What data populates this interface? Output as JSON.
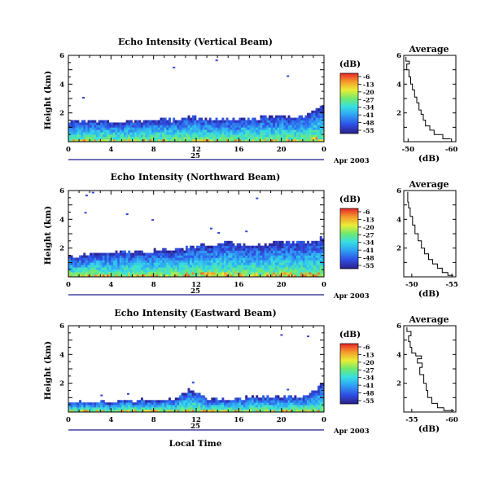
{
  "figure": {
    "x_axis_label": "Local Time",
    "date_label": "Apr 2003",
    "day_label": "25",
    "colorbar_unit": "(dB)",
    "average_title": "Average",
    "average_xlabel": "(dB)"
  },
  "chart_data": [
    {
      "type": "heatmap",
      "title": "Echo Intensity (Vertical Beam)",
      "ylabel": "Height (km)",
      "xlabel": "Local Time",
      "x_ticks": [
        "0",
        "4",
        "8",
        "12",
        "16",
        "20",
        "0"
      ],
      "x_values": [
        0,
        4,
        8,
        12,
        16,
        20,
        24
      ],
      "xlim": [
        0,
        24
      ],
      "y_ticks": [
        "2",
        "4",
        "6"
      ],
      "ylim": [
        0,
        6
      ],
      "colorbar": {
        "label": "(dB)",
        "ticks": [
          "-6",
          "-13",
          "-20",
          "-27",
          "-34",
          "-41",
          "-48",
          "-55"
        ],
        "range": [
          -55,
          -6
        ],
        "colormap": "jet"
      },
      "echo_top_km": [
        [
          0,
          1.45
        ],
        [
          2,
          1.45
        ],
        [
          4,
          1.4
        ],
        [
          6,
          1.45
        ],
        [
          8,
          1.5
        ],
        [
          10,
          1.5
        ],
        [
          11.5,
          1.75
        ],
        [
          13,
          1.6
        ],
        [
          16,
          1.5
        ],
        [
          19,
          1.75
        ],
        [
          22,
          1.8
        ],
        [
          23.6,
          2.4
        ],
        [
          24,
          2.4
        ]
      ],
      "sparse_echoes": [
        [
          9.8,
          5.1
        ],
        [
          13.8,
          5.6
        ],
        [
          20.5,
          4.5
        ],
        [
          1.3,
          3.0
        ]
      ]
    },
    {
      "type": "line",
      "title": "Average",
      "xlabel": "(dB)",
      "x_ticks": [
        "-50",
        "-60"
      ],
      "x_values": [
        -50,
        -60
      ],
      "xlim": [
        -49,
        -61
      ],
      "y_ticks": [
        "2",
        "4",
        "6"
      ],
      "ylim": [
        0,
        6
      ],
      "series": [
        {
          "values": [
            [
              -59.8,
              0.2
            ],
            [
              -58,
              0.5
            ],
            [
              -56,
              0.8
            ],
            [
              -55,
              1.1
            ],
            [
              -54,
              1.5
            ],
            [
              -53.5,
              1.9
            ],
            [
              -53,
              2.2
            ],
            [
              -52.5,
              2.7
            ],
            [
              -52,
              3.1
            ],
            [
              -51.5,
              3.6
            ],
            [
              -51,
              4.0
            ],
            [
              -50.6,
              4.5
            ],
            [
              -50.2,
              5.0
            ],
            [
              -49.7,
              5.4
            ],
            [
              -50.3,
              5.6
            ],
            [
              -49.5,
              5.9
            ]
          ]
        }
      ]
    },
    {
      "type": "heatmap",
      "title": "Echo Intensity (Northward Beam)",
      "ylabel": "Height (km)",
      "xlabel": "Local Time",
      "x_ticks": [
        "0",
        "4",
        "8",
        "12",
        "16",
        "20",
        "0"
      ],
      "x_values": [
        0,
        4,
        8,
        12,
        16,
        20,
        24
      ],
      "xlim": [
        0,
        24
      ],
      "y_ticks": [
        "2",
        "4",
        "6"
      ],
      "ylim": [
        0,
        6
      ],
      "colorbar": {
        "label": "(dB)",
        "ticks": [
          "-6",
          "-13",
          "-20",
          "-27",
          "-34",
          "-41",
          "-48",
          "-55"
        ],
        "range": [
          -55,
          -6
        ],
        "colormap": "jet"
      },
      "echo_top_km": [
        [
          0,
          1.4
        ],
        [
          2,
          1.6
        ],
        [
          4,
          1.7
        ],
        [
          6,
          1.8
        ],
        [
          8,
          1.8
        ],
        [
          10,
          1.9
        ],
        [
          11.5,
          2.1
        ],
        [
          13,
          2.2
        ],
        [
          15,
          2.4
        ],
        [
          17,
          2.2
        ],
        [
          19,
          2.3
        ],
        [
          21,
          2.4
        ],
        [
          23.3,
          2.5
        ],
        [
          24,
          2.9
        ]
      ],
      "sparse_echoes": [
        [
          1.6,
          5.6
        ],
        [
          1.5,
          4.4
        ],
        [
          5.4,
          4.3
        ],
        [
          17.6,
          5.4
        ],
        [
          2.2,
          5.8
        ],
        [
          7.8,
          3.9
        ],
        [
          13.3,
          3.3
        ],
        [
          14.0,
          3.0
        ],
        [
          16.6,
          3.1
        ]
      ]
    },
    {
      "type": "line",
      "title": "Average",
      "xlabel": "(dB)",
      "x_ticks": [
        "-50",
        "-55"
      ],
      "x_values": [
        -50,
        -55
      ],
      "xlim": [
        -49,
        -55.5
      ],
      "y_ticks": [
        "2",
        "4",
        "6"
      ],
      "ylim": [
        0,
        6
      ],
      "series": [
        {
          "values": [
            [
              -55.2,
              0.1
            ],
            [
              -54.5,
              0.3
            ],
            [
              -53.8,
              0.6
            ],
            [
              -53.2,
              0.9
            ],
            [
              -52.6,
              1.2
            ],
            [
              -52.1,
              1.6
            ],
            [
              -51.6,
              2.0
            ],
            [
              -51.2,
              2.5
            ],
            [
              -50.8,
              3.0
            ],
            [
              -50.4,
              3.6
            ],
            [
              -50.1,
              4.2
            ],
            [
              -49.8,
              4.8
            ],
            [
              -49.6,
              5.2
            ],
            [
              -49.5,
              5.9
            ]
          ]
        }
      ]
    },
    {
      "type": "heatmap",
      "title": "Echo Intensity (Eastward Beam)",
      "ylabel": "Height (km)",
      "xlabel": "Local Time",
      "x_ticks": [
        "0",
        "4",
        "8",
        "12",
        "16",
        "20",
        "0"
      ],
      "x_values": [
        0,
        4,
        8,
        12,
        16,
        20,
        24
      ],
      "xlim": [
        0,
        24
      ],
      "y_ticks": [
        "2",
        "4",
        "6"
      ],
      "ylim": [
        0,
        6
      ],
      "colorbar": {
        "label": "(dB)",
        "ticks": [
          "-6",
          "-13",
          "-20",
          "-27",
          "-34",
          "-41",
          "-48",
          "-55"
        ],
        "range": [
          -55,
          -6
        ],
        "colormap": "jet"
      },
      "echo_top_km": [
        [
          0,
          0.7
        ],
        [
          2,
          0.7
        ],
        [
          4,
          0.75
        ],
        [
          6,
          0.85
        ],
        [
          8,
          0.8
        ],
        [
          10,
          0.9
        ],
        [
          11.6,
          1.6
        ],
        [
          13,
          0.9
        ],
        [
          15,
          0.9
        ],
        [
          17,
          1.0
        ],
        [
          19,
          1.1
        ],
        [
          21,
          1.0
        ],
        [
          23.2,
          1.4
        ],
        [
          24,
          2.1
        ]
      ],
      "sparse_echoes": [
        [
          19.9,
          5.3
        ],
        [
          22.4,
          5.2
        ],
        [
          3.0,
          1.1
        ],
        [
          5.5,
          1.2
        ],
        [
          20.5,
          1.5
        ],
        [
          11.6,
          2.0
        ]
      ]
    },
    {
      "type": "line",
      "title": "Average",
      "xlabel": "(dB)",
      "x_ticks": [
        "-55",
        "-60"
      ],
      "x_values": [
        -55,
        -60
      ],
      "xlim": [
        -54,
        -60.5
      ],
      "y_ticks": [
        "2",
        "4",
        "6"
      ],
      "ylim": [
        0,
        6
      ],
      "series": [
        {
          "values": [
            [
              -60.3,
              0.1
            ],
            [
              -59.0,
              0.3
            ],
            [
              -58.2,
              0.6
            ],
            [
              -57.5,
              1.0
            ],
            [
              -57.0,
              1.5
            ],
            [
              -56.8,
              2.0
            ],
            [
              -56.5,
              2.6
            ],
            [
              -56.0,
              3.1
            ],
            [
              -56.3,
              3.4
            ],
            [
              -55.7,
              3.7
            ],
            [
              -56.2,
              3.9
            ],
            [
              -55.5,
              4.1
            ],
            [
              -55.0,
              4.5
            ],
            [
              -54.8,
              4.9
            ],
            [
              -54.6,
              5.3
            ],
            [
              -54.9,
              5.6
            ],
            [
              -54.4,
              5.9
            ]
          ]
        }
      ]
    }
  ]
}
